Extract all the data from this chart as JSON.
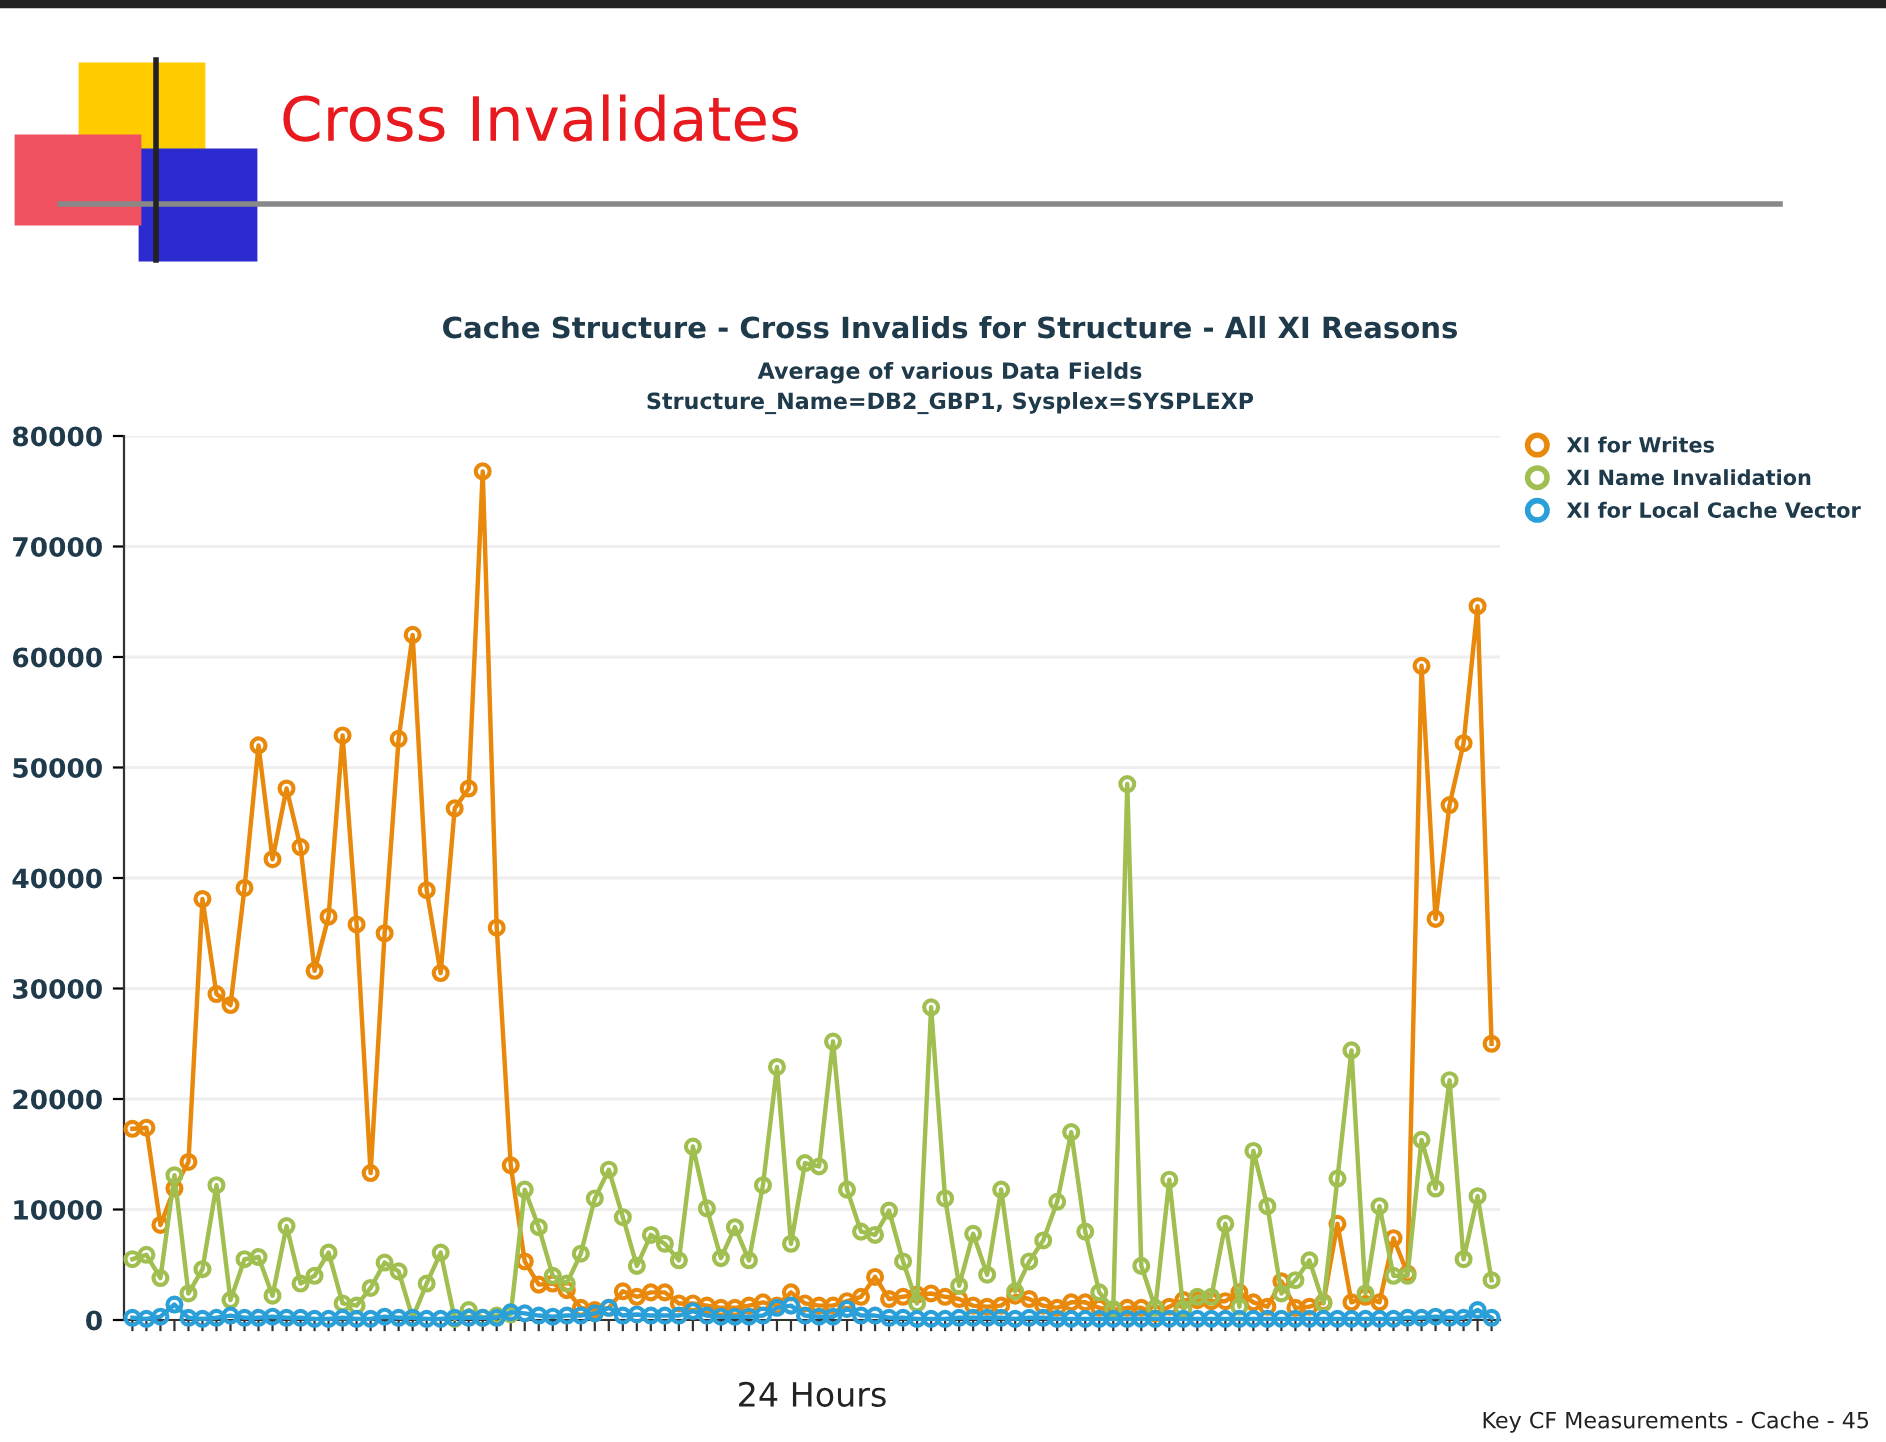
{
  "chart_data": {
    "type": "line",
    "title": "Cache Structure - Cross Invalids for Structure - All XI Reasons",
    "subtitle": "Average of various Data Fields\nStructure_Name=DB2_GBP1, Sysplex=SYSPLEXP",
    "xlabel": "24 Hours",
    "annotations": [
      "Cross Invalidates",
      "Key CF Measurements - Cache - 45"
    ],
    "categories": [
      null,
      null,
      null,
      null,
      null,
      null,
      null,
      null,
      null,
      null,
      null,
      null,
      null,
      null,
      null,
      null,
      null,
      null,
      null,
      null,
      null,
      null,
      null,
      null,
      null,
      null,
      null,
      null,
      null,
      null,
      null,
      null,
      null,
      null,
      null,
      null,
      null,
      null,
      null,
      null,
      null,
      null,
      null,
      null,
      null,
      null,
      null,
      null,
      null,
      null,
      null,
      null,
      null,
      null,
      null,
      null,
      null,
      null,
      null,
      null,
      null,
      null,
      null,
      null,
      null,
      null,
      null,
      null,
      null,
      null,
      null,
      null,
      null,
      null,
      null,
      null,
      null,
      null,
      null,
      null,
      null,
      null,
      null,
      null,
      null,
      null,
      null,
      null,
      null,
      null,
      null,
      null,
      null,
      null,
      null,
      null,
      null,
      null
    ],
    "series": [
      {
        "name": "XI for Writes",
        "color": "#e8890c",
        "values": [
          17300,
          17400,
          8600,
          11900,
          14300,
          38100,
          29500,
          28500,
          39100,
          52000,
          41700,
          48100,
          42800,
          31600,
          36500,
          52900,
          35800,
          13300,
          35000,
          52600,
          62000,
          38900,
          31400,
          46300,
          48100,
          76800,
          35500,
          14000,
          5300,
          3200,
          3300,
          2700,
          1100,
          900,
          1100,
          2600,
          2100,
          2500,
          2500,
          1500,
          1500,
          1300,
          1100,
          1100,
          1300,
          1600,
          1300,
          2500,
          1500,
          1300,
          1300,
          1700,
          2100,
          3900,
          1900,
          2100,
          2300,
          2400,
          2100,
          1900,
          1300,
          1200,
          1300,
          2200,
          1900,
          1300,
          1100,
          1600,
          1600,
          1100,
          900,
          1100,
          1100,
          600,
          1200,
          1800,
          1800,
          1700,
          1700,
          2500,
          1600,
          1200,
          3500,
          1100,
          1200,
          1600,
          8700,
          1600,
          2100,
          1600,
          7400,
          4200,
          59200,
          36300,
          46600,
          52200,
          64600,
          25000
        ]
      },
      {
        "name": "XI Name Invalidation",
        "color": "#a0bf50",
        "values": [
          5500,
          5900,
          3800,
          13100,
          2400,
          4600,
          12200,
          1800,
          5500,
          5700,
          2200,
          8500,
          3300,
          4000,
          6100,
          1500,
          1300,
          2900,
          5200,
          4400,
          200,
          3300,
          6100,
          100,
          900,
          200,
          400,
          500,
          11800,
          8400,
          4000,
          3300,
          6000,
          11000,
          13600,
          9300,
          4900,
          7700,
          6900,
          5400,
          15700,
          10100,
          5600,
          8400,
          5400,
          12200,
          22900,
          6900,
          14200,
          13900,
          25200,
          11800,
          8000,
          7700,
          9900,
          5300,
          1500,
          28300,
          11000,
          3100,
          7800,
          4100,
          11800,
          2600,
          5300,
          7200,
          10700,
          17000,
          8000,
          2500,
          1000,
          48500,
          4900,
          1100,
          12700,
          1000,
          2100,
          2100,
          8700,
          1200,
          15300,
          10300,
          2400,
          3600,
          5400,
          1500,
          12800,
          24400,
          2400,
          10300,
          4000,
          4000,
          16300,
          11900,
          21700,
          5500,
          11200,
          3600
        ]
      },
      {
        "name": "XI for Local Cache Vector",
        "color": "#2a9fd8",
        "values": [
          200,
          100,
          300,
          1400,
          200,
          100,
          200,
          400,
          200,
          200,
          300,
          200,
          200,
          100,
          100,
          200,
          100,
          100,
          300,
          200,
          200,
          100,
          100,
          200,
          200,
          200,
          200,
          700,
          600,
          400,
          300,
          400,
          400,
          600,
          1100,
          400,
          500,
          400,
          400,
          400,
          800,
          400,
          300,
          300,
          300,
          400,
          1100,
          1300,
          400,
          300,
          300,
          1000,
          400,
          400,
          200,
          200,
          100,
          100,
          100,
          200,
          200,
          200,
          200,
          100,
          200,
          200,
          100,
          100,
          100,
          100,
          100,
          100,
          100,
          100,
          100,
          100,
          100,
          100,
          100,
          100,
          100,
          100,
          100,
          100,
          100,
          100,
          100,
          100,
          100,
          100,
          100,
          200,
          200,
          300,
          200,
          200,
          900,
          200
        ]
      }
    ],
    "ylim": [
      0,
      80000
    ],
    "yticks": [
      0,
      10000,
      20000,
      30000,
      40000,
      50000,
      60000,
      70000,
      80000
    ],
    "tick_labels": "y",
    "grid": "y",
    "legend": "top right",
    "marker": "circle",
    "line_style": "solid"
  }
}
